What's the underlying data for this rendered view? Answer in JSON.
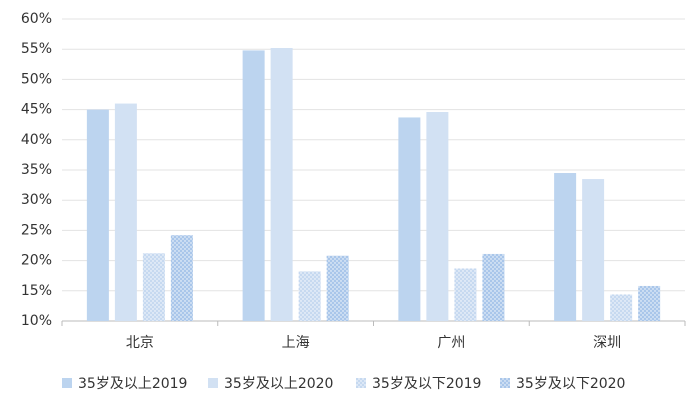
{
  "chart_data": {
    "type": "bar",
    "categories": [
      "北京",
      "上海",
      "广州",
      "深圳"
    ],
    "series": [
      {
        "name": "35岁及以上2019",
        "color": "#bcd4ef",
        "values": [
          45.0,
          54.8,
          43.7,
          34.5
        ]
      },
      {
        "name": "35岁及以上2020",
        "color": "#d2e1f3",
        "values": [
          46.0,
          55.2,
          44.6,
          33.5
        ]
      },
      {
        "name": "35岁及以下2019",
        "color": "#c6d9f0",
        "pattern": "dots",
        "values": [
          21.2,
          18.2,
          18.7,
          14.4
        ]
      },
      {
        "name": "35岁及以下2020",
        "color": "#a9c6ea",
        "pattern": "dots",
        "values": [
          24.2,
          20.8,
          21.1,
          15.8
        ]
      }
    ],
    "ylim": [
      10,
      60
    ],
    "yticks": [
      {
        "value": 10,
        "label": "10%"
      },
      {
        "value": 15,
        "label": "15%"
      },
      {
        "value": 20,
        "label": "20%"
      },
      {
        "value": 25,
        "label": "25%"
      },
      {
        "value": 30,
        "label": "30%"
      },
      {
        "value": 35,
        "label": "35%"
      },
      {
        "value": 40,
        "label": "40%"
      },
      {
        "value": 45,
        "label": "45%"
      },
      {
        "value": 50,
        "label": "50%"
      },
      {
        "value": 55,
        "label": "55%"
      },
      {
        "value": 60,
        "label": "60%"
      }
    ],
    "grid": true,
    "legend": "bottom"
  }
}
